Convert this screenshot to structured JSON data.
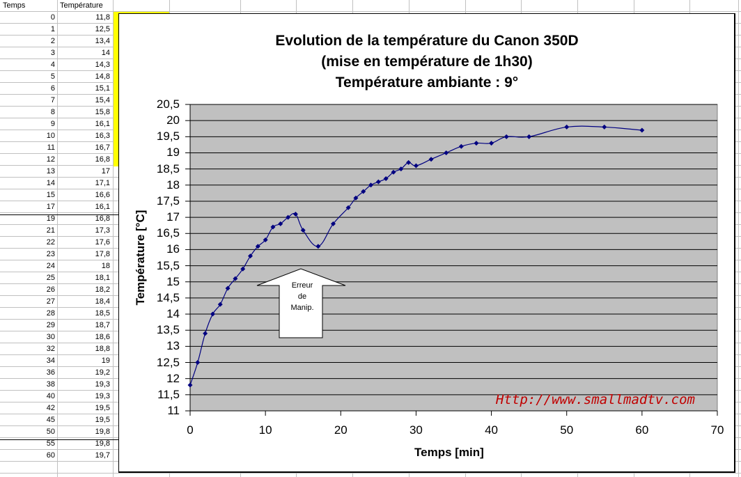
{
  "spreadsheet": {
    "headers": [
      "Temps",
      "Température"
    ],
    "rows": [
      [
        "0",
        "11,8"
      ],
      [
        "1",
        "12,5"
      ],
      [
        "2",
        "13,4"
      ],
      [
        "3",
        "14"
      ],
      [
        "4",
        "14,3"
      ],
      [
        "5",
        "14,8"
      ],
      [
        "6",
        "15,1"
      ],
      [
        "7",
        "15,4"
      ],
      [
        "8",
        "15,8"
      ],
      [
        "9",
        "16,1"
      ],
      [
        "10",
        "16,3"
      ],
      [
        "11",
        "16,7"
      ],
      [
        "12",
        "16,8"
      ],
      [
        "13",
        "17"
      ],
      [
        "14",
        "17,1"
      ],
      [
        "15",
        "16,6"
      ],
      [
        "17",
        "16,1"
      ],
      [
        "19",
        "16,8"
      ],
      [
        "21",
        "17,3"
      ],
      [
        "22",
        "17,6"
      ],
      [
        "23",
        "17,8"
      ],
      [
        "24",
        "18"
      ],
      [
        "25",
        "18,1"
      ],
      [
        "26",
        "18,2"
      ],
      [
        "27",
        "18,4"
      ],
      [
        "28",
        "18,5"
      ],
      [
        "29",
        "18,7"
      ],
      [
        "30",
        "18,6"
      ],
      [
        "32",
        "18,8"
      ],
      [
        "34",
        "19"
      ],
      [
        "36",
        "19,2"
      ],
      [
        "38",
        "19,3"
      ],
      [
        "40",
        "19,3"
      ],
      [
        "42",
        "19,5"
      ],
      [
        "45",
        "19,5"
      ],
      [
        "50",
        "19,8"
      ],
      [
        "55",
        "19,8"
      ],
      [
        "60",
        "19,7"
      ]
    ]
  },
  "colors": {
    "plot_bg": "#c0c0c0",
    "series": "#000080",
    "selection_highlight": "#ffff00",
    "watermark": "#c00000"
  },
  "annotation": {
    "arrow_text_lines": [
      "Erreur",
      "de",
      "Manip."
    ]
  },
  "watermark": "Http://www.smallmadtv.com",
  "chart_data": {
    "type": "scatter",
    "title": "Evolution de la température du Canon 350D",
    "subtitle_lines": [
      "(mise en température de 1h30)",
      "Température ambiante : 9°"
    ],
    "xlabel": "Temps [min]",
    "ylabel": "Température [°C]",
    "xlim": [
      0,
      70
    ],
    "ylim": [
      11,
      20.5
    ],
    "x_ticks": [
      "0",
      "10",
      "20",
      "30",
      "40",
      "50",
      "60",
      "70"
    ],
    "y_ticks": [
      "20,5",
      "20",
      "19,5",
      "19",
      "18,5",
      "18",
      "17,5",
      "17",
      "16,5",
      "16",
      "15,5",
      "15",
      "14,5",
      "14",
      "13,5",
      "13",
      "12,5",
      "12",
      "11,5",
      "11"
    ],
    "grid": "horizontal",
    "legend": "none",
    "line_style": "smoothed line with diamond markers",
    "series": [
      {
        "name": "Température",
        "x": [
          0,
          1,
          2,
          3,
          4,
          5,
          6,
          7,
          8,
          9,
          10,
          11,
          12,
          13,
          14,
          15,
          17,
          19,
          21,
          22,
          23,
          24,
          25,
          26,
          27,
          28,
          29,
          30,
          32,
          34,
          36,
          38,
          40,
          42,
          45,
          50,
          55,
          60
        ],
        "y": [
          11.8,
          12.5,
          13.4,
          14,
          14.3,
          14.8,
          15.1,
          15.4,
          15.8,
          16.1,
          16.3,
          16.7,
          16.8,
          17,
          17.1,
          16.6,
          16.1,
          16.8,
          17.3,
          17.6,
          17.8,
          18,
          18.1,
          18.2,
          18.4,
          18.5,
          18.7,
          18.6,
          18.8,
          19,
          19.2,
          19.3,
          19.3,
          19.5,
          19.5,
          19.8,
          19.8,
          19.7
        ]
      }
    ]
  }
}
